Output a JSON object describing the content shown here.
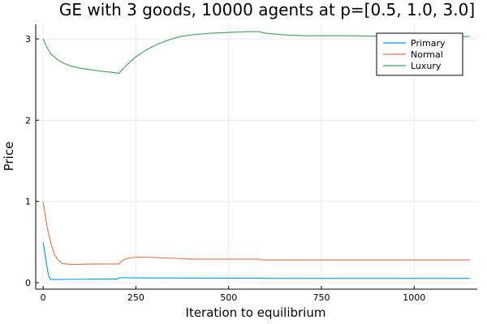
{
  "chart_data": {
    "type": "line",
    "title": "GE with 3 goods, 10000 agents at p=[0.5, 1.0, 3.0]",
    "xlabel": "Iteration to equilibrium",
    "ylabel": "Price",
    "xlim": [
      -20,
      1170
    ],
    "ylim": [
      -0.08,
      3.18
    ],
    "xticks": [
      0,
      250,
      500,
      750,
      1000
    ],
    "yticks": [
      0,
      1,
      2,
      3
    ],
    "grid": true,
    "legend_position": "top-right",
    "series": [
      {
        "name": "Primary",
        "color": "#009af9",
        "points": [
          [
            0,
            0.5
          ],
          [
            5,
            0.35
          ],
          [
            10,
            0.2
          ],
          [
            15,
            0.08
          ],
          [
            20,
            0.04
          ],
          [
            40,
            0.04
          ],
          [
            100,
            0.042
          ],
          [
            150,
            0.045
          ],
          [
            200,
            0.045
          ],
          [
            205,
            0.06
          ],
          [
            210,
            0.06
          ],
          [
            300,
            0.058
          ],
          [
            400,
            0.056
          ],
          [
            500,
            0.055
          ],
          [
            580,
            0.055
          ],
          [
            600,
            0.053
          ],
          [
            700,
            0.053
          ],
          [
            800,
            0.053
          ],
          [
            900,
            0.053
          ],
          [
            1000,
            0.053
          ],
          [
            1150,
            0.053
          ]
        ]
      },
      {
        "name": "Normal",
        "color": "#e26f46",
        "points": [
          [
            0,
            1.0
          ],
          [
            5,
            0.85
          ],
          [
            10,
            0.7
          ],
          [
            20,
            0.5
          ],
          [
            30,
            0.35
          ],
          [
            40,
            0.28
          ],
          [
            50,
            0.24
          ],
          [
            60,
            0.23
          ],
          [
            80,
            0.225
          ],
          [
            120,
            0.228
          ],
          [
            160,
            0.23
          ],
          [
            200,
            0.23
          ],
          [
            205,
            0.23
          ],
          [
            210,
            0.26
          ],
          [
            220,
            0.29
          ],
          [
            240,
            0.31
          ],
          [
            260,
            0.315
          ],
          [
            300,
            0.31
          ],
          [
            350,
            0.3
          ],
          [
            400,
            0.29
          ],
          [
            500,
            0.29
          ],
          [
            580,
            0.29
          ],
          [
            590,
            0.28
          ],
          [
            700,
            0.28
          ],
          [
            800,
            0.28
          ],
          [
            900,
            0.28
          ],
          [
            1000,
            0.28
          ],
          [
            1150,
            0.28
          ]
        ]
      },
      {
        "name": "Luxury",
        "color": "#3da44d",
        "points": [
          [
            0,
            3.0
          ],
          [
            10,
            2.9
          ],
          [
            20,
            2.82
          ],
          [
            40,
            2.74
          ],
          [
            60,
            2.69
          ],
          [
            80,
            2.66
          ],
          [
            100,
            2.64
          ],
          [
            130,
            2.62
          ],
          [
            160,
            2.6
          ],
          [
            185,
            2.59
          ],
          [
            200,
            2.58
          ],
          [
            205,
            2.58
          ],
          [
            215,
            2.63
          ],
          [
            230,
            2.7
          ],
          [
            250,
            2.78
          ],
          [
            280,
            2.87
          ],
          [
            310,
            2.94
          ],
          [
            340,
            2.99
          ],
          [
            370,
            3.03
          ],
          [
            400,
            3.05
          ],
          [
            450,
            3.07
          ],
          [
            500,
            3.08
          ],
          [
            550,
            3.09
          ],
          [
            580,
            3.09
          ],
          [
            600,
            3.07
          ],
          [
            650,
            3.05
          ],
          [
            700,
            3.04
          ],
          [
            800,
            3.04
          ],
          [
            900,
            3.035
          ],
          [
            1000,
            3.03
          ],
          [
            1100,
            3.03
          ],
          [
            1150,
            3.03
          ]
        ]
      }
    ]
  }
}
